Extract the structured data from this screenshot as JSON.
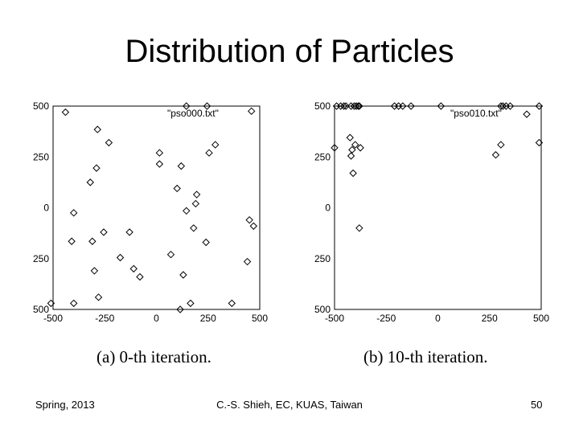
{
  "title": "Distribution of Particles",
  "chart_data": [
    {
      "type": "scatter",
      "legend": "\"pso000.txt\"",
      "legend_position": "top-right",
      "caption": "(a) 0-th iteration.",
      "xlim": [
        -500,
        500
      ],
      "ylim": [
        -500,
        500
      ],
      "xticks": [
        "-500",
        "-250",
        "0",
        "250",
        "500"
      ],
      "yticks": [
        "500",
        "250",
        "0",
        "250",
        "500"
      ],
      "grid": false,
      "points": [
        [
          -440,
          470
        ],
        [
          -285,
          385
        ],
        [
          -230,
          320
        ],
        [
          -290,
          195
        ],
        [
          -320,
          125
        ],
        [
          -400,
          -25
        ],
        [
          -410,
          -165
        ],
        [
          -310,
          -165
        ],
        [
          -255,
          -120
        ],
        [
          -130,
          -120
        ],
        [
          -175,
          -245
        ],
        [
          -110,
          -300
        ],
        [
          -80,
          -340
        ],
        [
          -300,
          -310
        ],
        [
          -400,
          -470
        ],
        [
          -280,
          -440
        ],
        [
          -510,
          -470
        ],
        [
          15,
          270
        ],
        [
          15,
          215
        ],
        [
          120,
          205
        ],
        [
          100,
          95
        ],
        [
          145,
          -15
        ],
        [
          190,
          20
        ],
        [
          195,
          65
        ],
        [
          180,
          -100
        ],
        [
          70,
          -230
        ],
        [
          130,
          -330
        ],
        [
          165,
          -470
        ],
        [
          115,
          -500
        ],
        [
          240,
          -170
        ],
        [
          255,
          270
        ],
        [
          285,
          310
        ],
        [
          365,
          -470
        ],
        [
          440,
          -265
        ],
        [
          450,
          -60
        ],
        [
          470,
          -90
        ],
        [
          145,
          500
        ],
        [
          245,
          500
        ],
        [
          460,
          475
        ]
      ]
    },
    {
      "type": "scatter",
      "legend": "\"pso010.txt\"",
      "legend_position": "top-right",
      "caption": "(b) 10-th iteration.",
      "xlim": [
        -500,
        500
      ],
      "ylim": [
        -500,
        500
      ],
      "xticks": [
        "-500",
        "-250",
        "0",
        "250",
        "500"
      ],
      "yticks": [
        "500",
        "250",
        "0",
        "250",
        "500"
      ],
      "grid": false,
      "points": [
        [
          -490,
          500
        ],
        [
          -470,
          500
        ],
        [
          -455,
          500
        ],
        [
          -445,
          500
        ],
        [
          -420,
          500
        ],
        [
          -405,
          500
        ],
        [
          -395,
          500
        ],
        [
          -385,
          500
        ],
        [
          -380,
          500
        ],
        [
          -210,
          500
        ],
        [
          -190,
          500
        ],
        [
          -170,
          500
        ],
        [
          -130,
          500
        ],
        [
          15,
          500
        ],
        [
          305,
          500
        ],
        [
          315,
          500
        ],
        [
          330,
          500
        ],
        [
          350,
          500
        ],
        [
          490,
          500
        ],
        [
          -500,
          295
        ],
        [
          -425,
          345
        ],
        [
          -415,
          285
        ],
        [
          -420,
          255
        ],
        [
          -400,
          310
        ],
        [
          -375,
          295
        ],
        [
          -410,
          170
        ],
        [
          -380,
          -100
        ],
        [
          280,
          260
        ],
        [
          305,
          310
        ],
        [
          430,
          460
        ],
        [
          490,
          320
        ]
      ]
    }
  ],
  "footer": {
    "left": "Spring, 2013",
    "center": "C.-S. Shieh, EC, KUAS, Taiwan",
    "right": "50"
  }
}
